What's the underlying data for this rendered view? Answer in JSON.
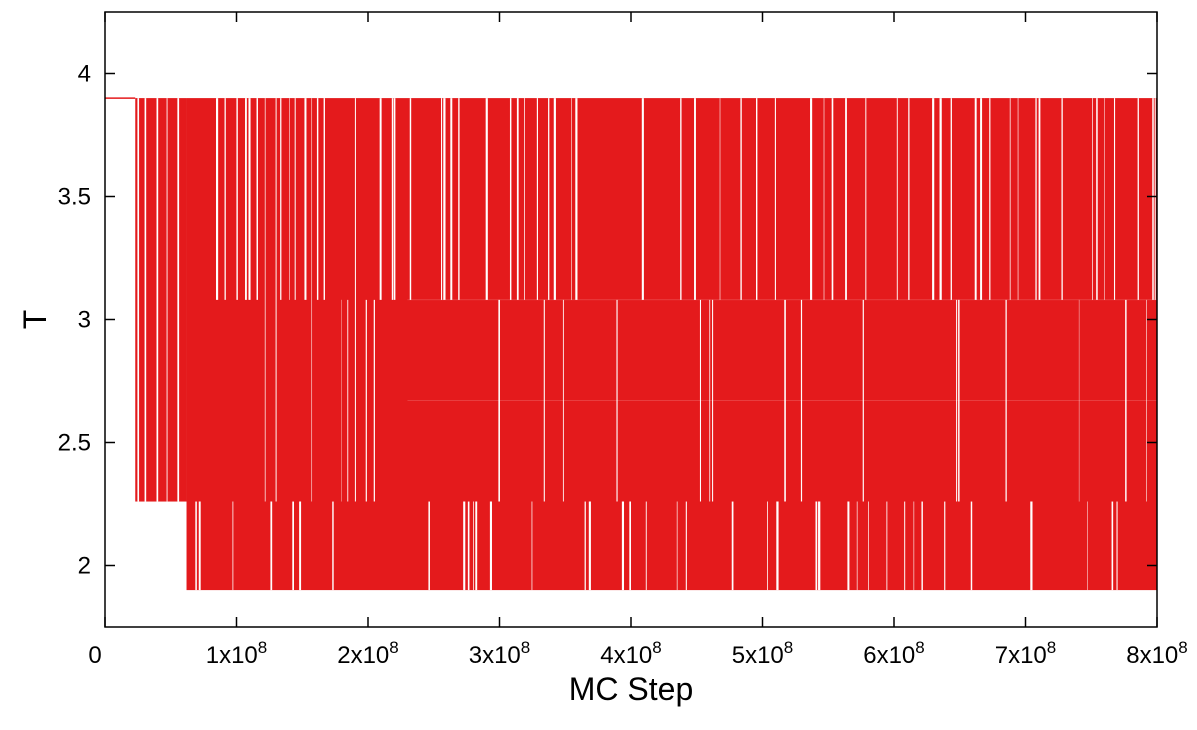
{
  "chart_data": {
    "type": "line",
    "title": "",
    "xlabel": "MC Step",
    "ylabel": "T",
    "xlim": [
      0,
      800000000
    ],
    "ylim": [
      1.75,
      4.25
    ],
    "grid": false,
    "legend": "none",
    "color": "#e41a1c",
    "x_ticks": [
      {
        "value": 0,
        "base": "0",
        "exp": ""
      },
      {
        "value": 100000000,
        "base": "1x10",
        "exp": "8"
      },
      {
        "value": 200000000,
        "base": "2x10",
        "exp": "8"
      },
      {
        "value": 300000000,
        "base": "3x10",
        "exp": "8"
      },
      {
        "value": 400000000,
        "base": "4x10",
        "exp": "8"
      },
      {
        "value": 500000000,
        "base": "5x10",
        "exp": "8"
      },
      {
        "value": 600000000,
        "base": "6x10",
        "exp": "8"
      },
      {
        "value": 700000000,
        "base": "7x10",
        "exp": "8"
      },
      {
        "value": 800000000,
        "base": "8x10",
        "exp": "8"
      }
    ],
    "y_ticks": [
      {
        "value": 2,
        "label": "2"
      },
      {
        "value": 2.5,
        "label": "2.5"
      },
      {
        "value": 3,
        "label": "3"
      },
      {
        "value": 3.5,
        "label": "3.5"
      },
      {
        "value": 4,
        "label": "4"
      }
    ],
    "temperature_levels": [
      1.9,
      2.26,
      2.67,
      3.08,
      3.9
    ],
    "series": [
      {
        "segments": [
          {
            "x": [
              0,
              23000000
            ],
            "band": [
              3.9,
              3.9
            ]
          },
          {
            "x": [
              23000000,
              62000000
            ],
            "band": [
              2.26,
              3.9
            ]
          },
          {
            "x": [
              62000000,
              800000000
            ],
            "band": [
              1.9,
              3.9
            ]
          }
        ]
      }
    ]
  }
}
